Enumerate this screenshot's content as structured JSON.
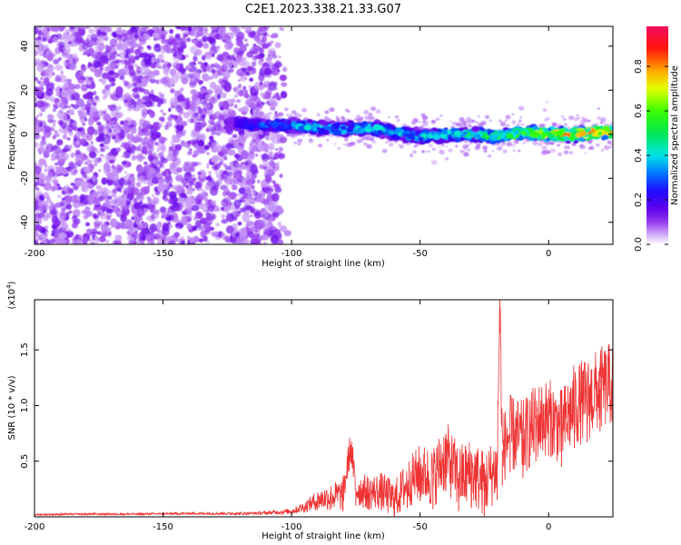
{
  "title": "C2E1.2023.338.21.33.G07",
  "chart_data": [
    {
      "type": "heatmap",
      "name": "spectrogram",
      "xlabel": "Height of straight line (km)",
      "ylabel": "Frequency (Hz)",
      "xlim": [
        -200,
        25
      ],
      "ylim": [
        -50,
        49
      ],
      "x_ticks": [
        -200,
        -150,
        -100,
        -50,
        0
      ],
      "y_ticks": [
        -40,
        -20,
        0,
        20,
        40
      ],
      "colorbar": {
        "label": "Normalized spectral amplitude",
        "range": [
          0,
          0.98
        ],
        "ticks": [
          0.0,
          0.2,
          0.4,
          0.6,
          0.8
        ],
        "tick_labels": [
          "0.0",
          "0.2",
          "0.4",
          "0.6",
          "0.8"
        ]
      },
      "noise_region": {
        "x_range": [
          -200,
          -105
        ],
        "frequency_range": [
          -50,
          49
        ],
        "amplitude_range": [
          0.05,
          0.15
        ]
      },
      "signal_track": {
        "x": [
          -125,
          -120,
          -110,
          -100,
          -90,
          -80,
          -70,
          -60,
          -50,
          -40,
          -30,
          -20,
          -10,
          0,
          10,
          20,
          25
        ],
        "frequency": [
          5,
          5,
          4,
          4,
          3,
          2,
          3,
          1,
          -1,
          0,
          0,
          -1,
          1,
          0,
          0,
          1,
          1
        ],
        "amplitude": [
          0.15,
          0.25,
          0.35,
          0.4,
          0.45,
          0.45,
          0.45,
          0.45,
          0.45,
          0.5,
          0.55,
          0.6,
          0.7,
          0.85,
          0.9,
          0.9,
          0.9
        ]
      },
      "grid": false
    },
    {
      "type": "line",
      "name": "snr",
      "xlabel": "Height of straight line (km)",
      "ylabel": "SNR (10 * v/v)",
      "y_multiplier_label": "(x10",
      "y_multiplier_exp": "4",
      "xlim": [
        -200,
        25
      ],
      "ylim": [
        0,
        19500
      ],
      "x_ticks": [
        -200,
        -150,
        -100,
        -50,
        0
      ],
      "y_ticks": [
        5000,
        10000,
        15000
      ],
      "y_tick_labels": [
        "0.5",
        "1.0",
        "1.5"
      ],
      "series": [
        {
          "color": "#ee3333",
          "x": [
            -200,
            -180,
            -160,
            -140,
            -120,
            -110,
            -100,
            -95,
            -90,
            -85,
            -80,
            -77,
            -75,
            -70,
            -65,
            -60,
            -55,
            -50,
            -45,
            -40,
            -35,
            -30,
            -25,
            -20,
            -19,
            -18,
            -15,
            -10,
            -5,
            0,
            5,
            10,
            15,
            20,
            25
          ],
          "y": [
            200,
            250,
            250,
            300,
            300,
            350,
            500,
            900,
            1500,
            1800,
            2000,
            6400,
            2500,
            2200,
            2300,
            1500,
            3000,
            4000,
            3500,
            5500,
            3500,
            4000,
            3000,
            4500,
            19500,
            6000,
            7500,
            7000,
            8500,
            9000,
            8000,
            10000,
            10500,
            11500,
            12000
          ],
          "spread": [
            80,
            90,
            100,
            100,
            120,
            150,
            250,
            500,
            900,
            1200,
            1500,
            1500,
            1500,
            1600,
            1700,
            1800,
            2200,
            2600,
            2800,
            3200,
            3000,
            3200,
            3000,
            3000,
            3000,
            3200,
            3500,
            3500,
            3500,
            3500,
            3500,
            3800,
            3800,
            3800,
            3800
          ]
        }
      ],
      "grid": false
    }
  ]
}
